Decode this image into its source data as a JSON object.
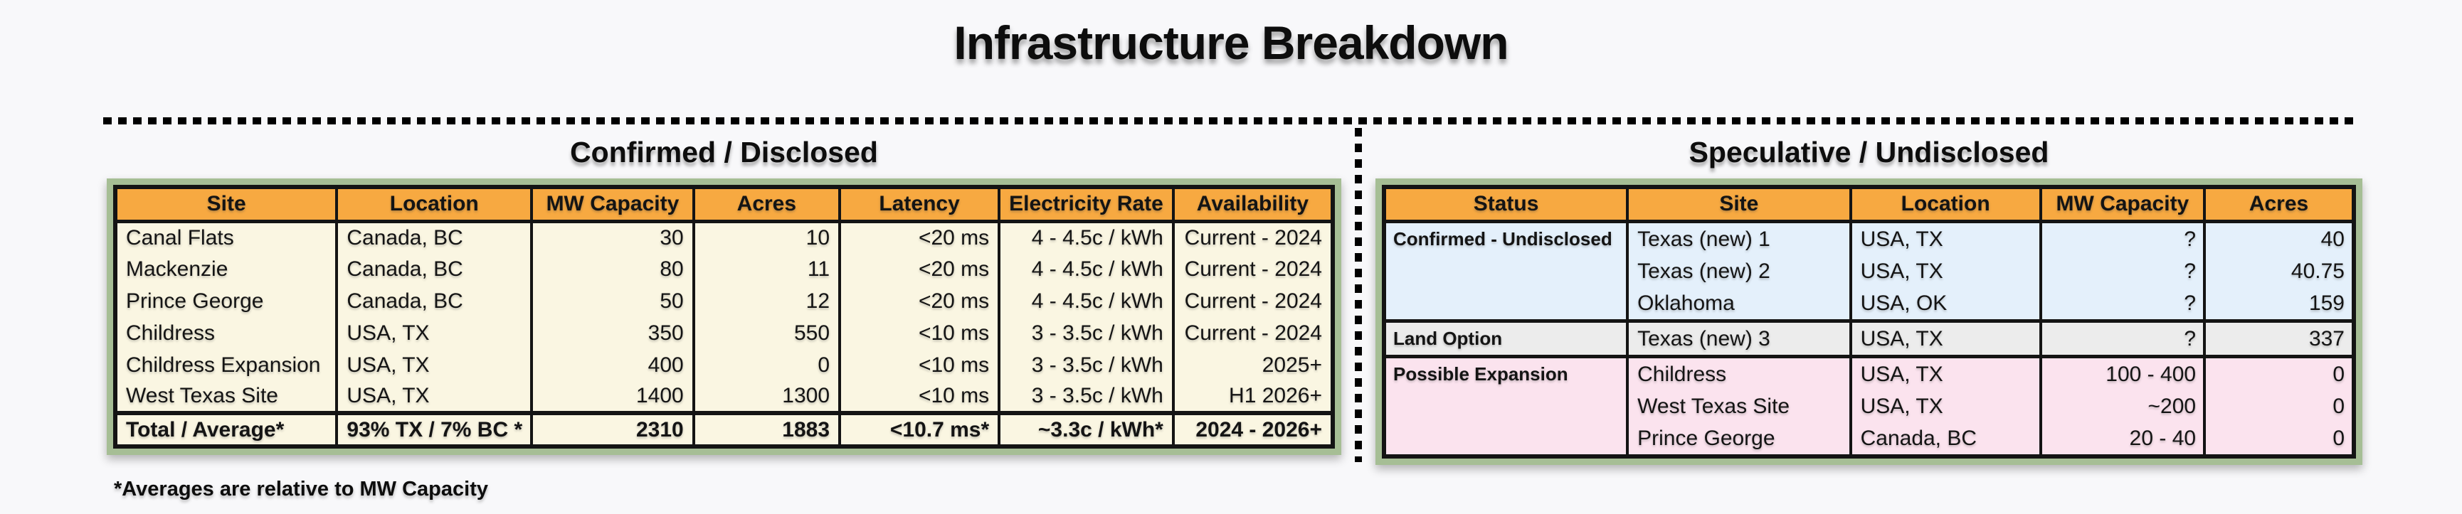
{
  "title": "Infrastructure Breakdown",
  "footnote": "*Averages are relative to MW Capacity",
  "colors": {
    "frame_green": "#A6BE95",
    "header_orange": "#F7A941",
    "body_cream": "#FAF6E2",
    "group_confirmed_undisclosed_blue": "#E4F0FB",
    "group_land_option_gray": "#ECECEC",
    "group_possible_expansion_pink": "#FBE3EE",
    "border_black": "#141414",
    "page_background": "#F8F8FA"
  },
  "chart_data": [
    {
      "type": "table",
      "title": "Confirmed / Disclosed",
      "columns": [
        "Site",
        "Location",
        "MW Capacity",
        "Acres",
        "Latency",
        "Electricity Rate",
        "Availability"
      ],
      "rows": [
        [
          "Canal Flats",
          "Canada, BC",
          "30",
          "10",
          "<20 ms",
          "4 - 4.5c / kWh",
          "Current - 2024"
        ],
        [
          "Mackenzie",
          "Canada, BC",
          "80",
          "11",
          "<20 ms",
          "4 - 4.5c / kWh",
          "Current - 2024"
        ],
        [
          "Prince George",
          "Canada, BC",
          "50",
          "12",
          "<20 ms",
          "4 - 4.5c / kWh",
          "Current - 2024"
        ],
        [
          "Childress",
          "USA, TX",
          "350",
          "550",
          "<10 ms",
          "3 - 3.5c / kWh",
          "Current - 2024"
        ],
        [
          "Childress Expansion",
          "USA, TX",
          "400",
          "0",
          "<10 ms",
          "3 - 3.5c / kWh",
          "2025+"
        ],
        [
          "West Texas Site",
          "USA, TX",
          "1400",
          "1300",
          "<10 ms",
          "3 - 3.5c / kWh",
          "H1 2026+"
        ]
      ],
      "total_row": [
        "Total / Average*",
        "93% TX / 7% BC *",
        "2310",
        "1883",
        "<10.7 ms*",
        "~3.3c / kWh*",
        "2024 - 2026+"
      ]
    },
    {
      "type": "table",
      "title": "Speculative / Undisclosed",
      "columns": [
        "Status",
        "Site",
        "Location",
        "MW Capacity",
        "Acres"
      ],
      "groups": [
        {
          "status": "Confirmed - Undisclosed",
          "row_bg": "#E4F0FB",
          "rows": [
            [
              "Texas (new) 1",
              "USA, TX",
              "?",
              "40"
            ],
            [
              "Texas (new) 2",
              "USA, TX",
              "?",
              "40.75"
            ],
            [
              "Oklahoma",
              "USA, OK",
              "?",
              "159"
            ]
          ]
        },
        {
          "status": "Land Option",
          "row_bg": "#ECECEC",
          "rows": [
            [
              "Texas (new) 3",
              "USA, TX",
              "?",
              "337"
            ]
          ]
        },
        {
          "status": "Possible Expansion",
          "row_bg": "#FBE3EE",
          "rows": [
            [
              "Childress",
              "USA, TX",
              "100 - 400",
              "0"
            ],
            [
              "West Texas Site",
              "USA, TX",
              "~200",
              "0"
            ],
            [
              "Prince George",
              "Canada, BC",
              "20 - 40",
              "0"
            ]
          ]
        }
      ]
    }
  ]
}
